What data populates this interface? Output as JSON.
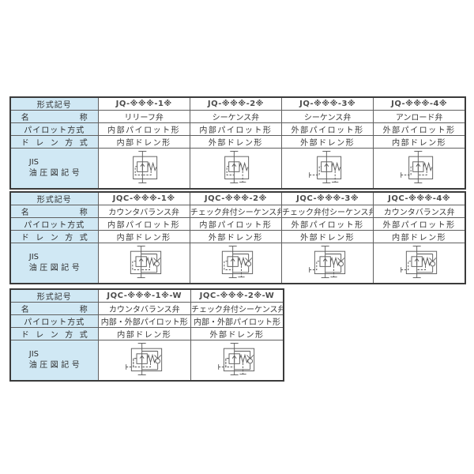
{
  "colors": {
    "page_background": "#ffffff",
    "header_cell_background": "#d0e8f4",
    "outer_border": "#3b3b3b",
    "inner_border": "#606060",
    "text": "#383838",
    "symbol_stroke": "#5a5a5a"
  },
  "row_labels": {
    "model": "形式記号",
    "name": "名称",
    "pilot": "パイロット方式",
    "drain": "ドレン方式",
    "jis_top": "JIS",
    "jis_bottom": "油圧図記号"
  },
  "tables": [
    {
      "series": "JQ",
      "columns": [
        {
          "model": "JQ-※※※-1※",
          "name": "リリーフ弁",
          "pilot": "内部パイロット形",
          "drain": "内部ドレン形",
          "symbol": {
            "check": false,
            "pilot_internal": true,
            "pilot_external": false,
            "drain_external": false
          }
        },
        {
          "model": "JQ-※※※-2※",
          "name": "シーケンス弁",
          "pilot": "内部パイロット形",
          "drain": "外部ドレン形",
          "symbol": {
            "check": false,
            "pilot_internal": true,
            "pilot_external": false,
            "drain_external": true
          }
        },
        {
          "model": "JQ-※※※-3※",
          "name": "シーケンス弁",
          "pilot": "外部パイロット形",
          "drain": "外部ドレン形",
          "symbol": {
            "check": false,
            "pilot_internal": false,
            "pilot_external": true,
            "drain_external": true
          }
        },
        {
          "model": "JQ-※※※-4※",
          "name": "アンロード弁",
          "pilot": "外部パイロット形",
          "drain": "内部ドレン形",
          "symbol": {
            "check": false,
            "pilot_internal": false,
            "pilot_external": true,
            "drain_external": false
          }
        }
      ]
    },
    {
      "series": "JQC",
      "columns": [
        {
          "model": "JQC-※※※-1※",
          "name": "カウンタバランス弁",
          "pilot": "内部パイロット形",
          "drain": "内部ドレン形",
          "symbol": {
            "check": true,
            "pilot_internal": true,
            "pilot_external": false,
            "drain_external": false
          }
        },
        {
          "model": "JQC-※※※-2※",
          "name": "チェック弁付シーケンス弁",
          "pilot": "内部パイロット形",
          "drain": "外部ドレン形",
          "symbol": {
            "check": true,
            "pilot_internal": true,
            "pilot_external": false,
            "drain_external": true
          }
        },
        {
          "model": "JQC-※※※-3※",
          "name": "チェック弁付シーケンス弁",
          "pilot": "外部パイロット形",
          "drain": "外部ドレン形",
          "symbol": {
            "check": true,
            "pilot_internal": false,
            "pilot_external": true,
            "drain_external": true
          }
        },
        {
          "model": "JQC-※※※-4※",
          "name": "カウンタバランス弁",
          "pilot": "外部パイロット形",
          "drain": "内部ドレン形",
          "symbol": {
            "check": true,
            "pilot_internal": false,
            "pilot_external": true,
            "drain_external": false
          }
        }
      ]
    },
    {
      "series": "JQC-W",
      "columns": [
        {
          "model": "JQC-※※※-1※-W",
          "name": "カウンタバランス弁",
          "pilot": "内部・外部パイロット形",
          "drain": "内部ドレン形",
          "symbol": {
            "check": true,
            "pilot_internal": true,
            "pilot_external": true,
            "drain_external": false
          }
        },
        {
          "model": "JQC-※※※-2※-W",
          "name": "チェック弁付シーケンス弁",
          "pilot": "内部・外部パイロット形",
          "drain": "外部ドレン形",
          "symbol": {
            "check": true,
            "pilot_internal": true,
            "pilot_external": true,
            "drain_external": true
          }
        }
      ]
    }
  ]
}
